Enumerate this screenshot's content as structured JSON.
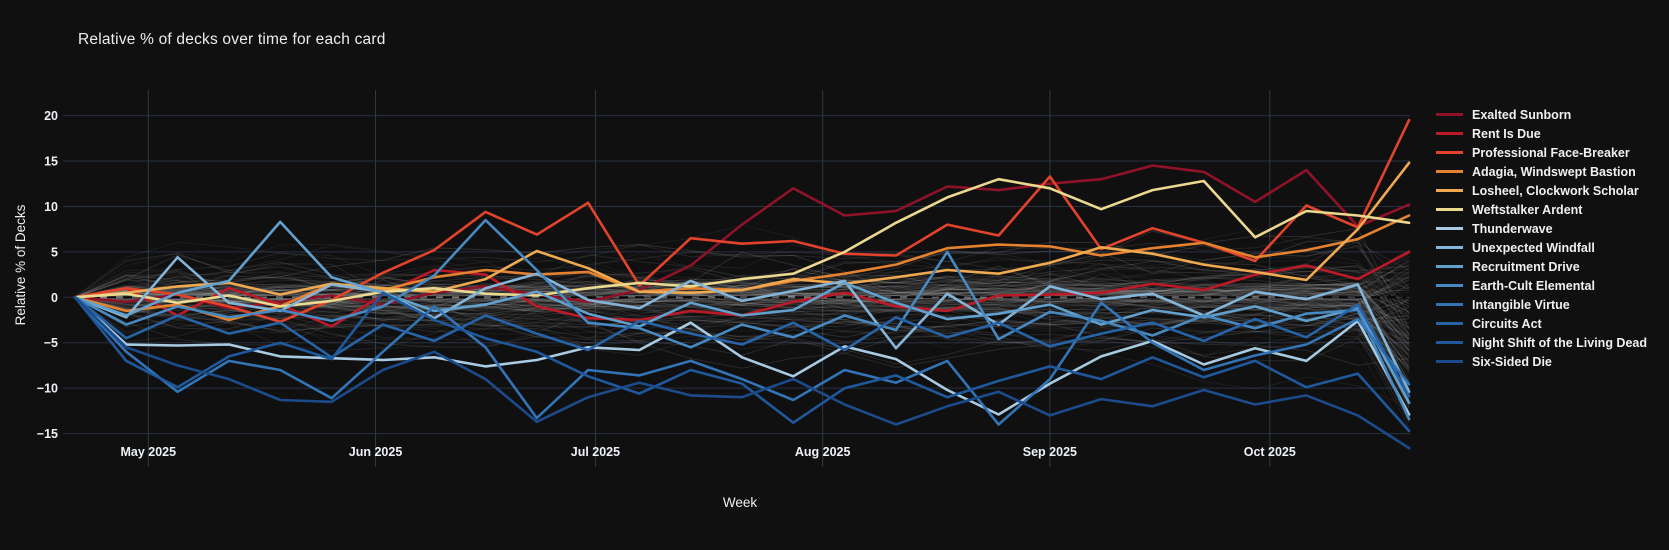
{
  "title": "Relative  % of decks over time for each card",
  "chart_data": {
    "type": "line",
    "title": "Relative  % of decks over time for each card",
    "xlabel": "Week",
    "ylabel": "Relative % of Decks",
    "x_ticks": [
      "May 2025",
      "Jun 2025",
      "Jul 2025",
      "Aug 2025",
      "Sep 2025",
      "Oct 2025"
    ],
    "y_ticks": [
      20,
      15,
      10,
      5,
      0,
      -5,
      -10,
      -15
    ],
    "ylim": [
      -16,
      23
    ],
    "grid": true,
    "legend_position": "right",
    "zero_line": "dashed-black",
    "weeks": 27,
    "series": [
      {
        "name": "Exalted Sunborn",
        "color": "#8f1229",
        "values": [
          0,
          -0.5,
          0.3,
          -1.2,
          -0.5,
          0.2,
          -0.8,
          0.5,
          1.2,
          0.3,
          -0.5,
          0.8,
          3.5,
          8,
          12,
          9,
          9.5,
          12.2,
          11.8,
          12.5,
          13,
          14.5,
          13.8,
          10.5,
          14,
          7.8,
          10.2
        ]
      },
      {
        "name": "Rent Is Due",
        "color": "#bd1a28",
        "values": [
          0,
          1,
          -2,
          1,
          -0.8,
          -3.2,
          0.3,
          3,
          2.5,
          -1,
          -2.3,
          -2.5,
          -1.5,
          -2,
          -0.5,
          0.5,
          -1,
          -1.5,
          0.2,
          0.3,
          0.5,
          1.5,
          0.8,
          2.5,
          3.5,
          2,
          5
        ]
      },
      {
        "name": "Professional Face-Breaker",
        "color": "#e2432a",
        "values": [
          0,
          1,
          0.3,
          -1,
          -2.7,
          -0.3,
          2.7,
          5.2,
          9.4,
          6.9,
          10.4,
          1.3,
          6.5,
          5.9,
          6.2,
          4.8,
          4.6,
          8,
          6.8,
          13.3,
          5.3,
          7.6,
          6,
          4,
          10.1,
          7.7,
          19.5
        ]
      },
      {
        "name": "Adagia, Windswept Bastion",
        "color": "#e5822f",
        "values": [
          0,
          -1.5,
          -0.8,
          -2.5,
          -1,
          1.5,
          0.8,
          2.2,
          3,
          2.5,
          2.8,
          0.6,
          1,
          0.8,
          1.8,
          2.6,
          3.6,
          5.4,
          5.8,
          5.6,
          4.6,
          5.4,
          6,
          4.4,
          5.2,
          6.4,
          9
        ]
      },
      {
        "name": "Losheel, Clockwork Scholar",
        "color": "#efa950",
        "values": [
          0,
          0.5,
          1.2,
          1.6,
          0.3,
          1.5,
          1,
          0.6,
          2,
          5.1,
          3.2,
          0.6,
          0.5,
          0.8,
          2,
          1.5,
          2.2,
          3,
          2.6,
          3.8,
          5.5,
          4.8,
          3.6,
          2.8,
          1.9,
          7.5,
          14.8
        ]
      },
      {
        "name": "Weftstalker Ardent",
        "color": "#ead98e",
        "values": [
          0,
          0.4,
          -0.6,
          0.2,
          -1,
          -0.4,
          0.6,
          1,
          0.4,
          0.2,
          1,
          1.6,
          1.2,
          2,
          2.6,
          5,
          8.2,
          11,
          13,
          12,
          9.7,
          11.8,
          12.8,
          6.6,
          9.5,
          9,
          8.2
        ]
      },
      {
        "name": "Thunderwave",
        "color": "#a9cbe2",
        "values": [
          0,
          -5.2,
          -5.3,
          -5.2,
          -6.5,
          -6.7,
          -6.9,
          -6.6,
          -7.6,
          -6.9,
          -5.5,
          -5.8,
          -2.8,
          -6.6,
          -8.7,
          -5.4,
          -6.8,
          -10.2,
          -12.9,
          -9.5,
          -6.5,
          -4.8,
          -7.4,
          -5.6,
          -7,
          -2.6,
          -12.9
        ]
      },
      {
        "name": "Unexpected Windfall",
        "color": "#84b5d9",
        "values": [
          0,
          -2.2,
          4.4,
          -0.6,
          -1.5,
          1.4,
          0.6,
          -2.3,
          1,
          2.6,
          -0.3,
          -1.2,
          1.8,
          -0.4,
          0.7,
          1.8,
          -5.6,
          0.4,
          -3,
          1.2,
          -0.2,
          0.4,
          -2,
          0.6,
          -0.2,
          1.4,
          -10.4
        ]
      },
      {
        "name": "Recruitment Drive",
        "color": "#62a0cd",
        "values": [
          0,
          -2,
          0.5,
          1.8,
          8.3,
          2.2,
          0.5,
          -1.5,
          -0.8,
          0.6,
          -1.8,
          -3.2,
          -0.6,
          -2,
          -1.4,
          1.6,
          -0.6,
          -2.4,
          -1.8,
          -0.8,
          -3,
          -1.4,
          -2.2,
          -1,
          -2.6,
          -1.2,
          -11.6
        ]
      },
      {
        "name": "Earth-Cult Elemental",
        "color": "#4789c0",
        "values": [
          0,
          -3,
          -1,
          -2.2,
          -1.4,
          -2.6,
          -1,
          2.4,
          8.5,
          3,
          -2.8,
          -3.4,
          -5.5,
          -3,
          -4.4,
          -2,
          -3.6,
          5,
          -4.6,
          -1.6,
          -2.6,
          -4.2,
          -2,
          -3.4,
          -1.8,
          -1.4,
          -13.4
        ]
      },
      {
        "name": "Intangible Virtue",
        "color": "#3274b5",
        "values": [
          0,
          -6,
          -10.4,
          -7,
          -8,
          -11.1,
          -6,
          -1,
          -5.5,
          -13.3,
          -8,
          -8.6,
          -7,
          -9,
          -11.3,
          -8,
          -9.4,
          -7,
          -14,
          -9,
          -0.6,
          -5,
          -8,
          -6.4,
          -5.2,
          -2.4,
          -9.6
        ]
      },
      {
        "name": "Circuits Act",
        "color": "#2763a7",
        "values": [
          0,
          -4.5,
          -2,
          -4,
          -2.8,
          -6.6,
          -3,
          -4.8,
          -2,
          -4,
          -5.8,
          -2.6,
          -4,
          -5.2,
          -2.8,
          -5.8,
          -2.2,
          -4.4,
          -2.8,
          -5.4,
          -4,
          -2.8,
          -4.8,
          -2.4,
          -4.4,
          -0.8,
          -10.9
        ]
      },
      {
        "name": "Night Shift of the Living Dead",
        "color": "#20589c",
        "values": [
          0,
          -7,
          -9.9,
          -6.5,
          -5,
          -6.8,
          0.5,
          -2.5,
          -4.5,
          -6,
          -8.7,
          -10.6,
          -8,
          -9.5,
          -13.8,
          -10,
          -8.6,
          -11,
          -9.2,
          -7.6,
          -9,
          -6.6,
          -8.8,
          -7,
          -9.9,
          -8.4,
          -14.7
        ]
      },
      {
        "name": "Six-Sided Die",
        "color": "#1c4b8b",
        "values": [
          0,
          -5.5,
          -7.5,
          -9,
          -11.3,
          -11.5,
          -8,
          -6,
          -9,
          -13.7,
          -11,
          -9.4,
          -10.8,
          -11,
          -9,
          -11.8,
          -14,
          -12,
          -10.4,
          -13,
          -11.2,
          -12,
          -10.2,
          -11.8,
          -10.8,
          -13,
          -16.6
        ]
      }
    ],
    "background_series": {
      "count": 120,
      "seed": 11,
      "color": "#cfcfcf",
      "opacity": 0.1
    }
  },
  "colors": {
    "background": "#101011",
    "grid": "#273140",
    "tick_text": "#eef1f5",
    "title_text": "#ededed"
  }
}
